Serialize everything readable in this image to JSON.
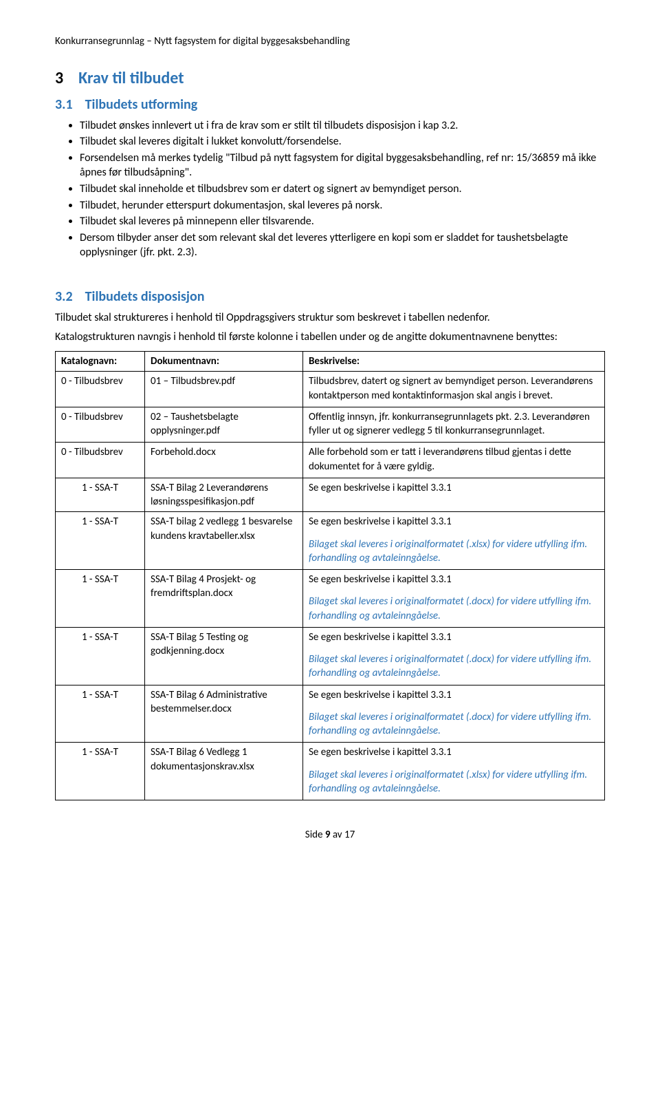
{
  "header": "Konkurransegrunnlag – Nytt fagsystem for digital byggesaksbehandling",
  "section": {
    "num": "3",
    "title": "Krav til tilbudet"
  },
  "sub31": {
    "num": "3.1",
    "title": "Tilbudets utforming",
    "bullets": [
      "Tilbudet ønskes innlevert ut i fra de krav som er stilt til tilbudets disposisjon i kap 3.2.",
      "Tilbudet skal leveres digitalt i lukket konvolutt/forsendelse.",
      "Forsendelsen må merkes tydelig \"Tilbud på nytt fagsystem for digital byggesaksbehandling, ref nr: 15/36859 må ikke åpnes før tilbudsåpning\".",
      "Tilbudet skal inneholde et tilbudsbrev som er datert og signert av bemyndiget person.",
      "Tilbudet, herunder etterspurt dokumentasjon, skal leveres på norsk.",
      "Tilbudet skal leveres på minnepenn eller tilsvarende.",
      "Dersom tilbyder anser det som relevant skal det leveres ytterligere en kopi som er sladdet for taushetsbelagte opplysninger (jfr. pkt. 2.3)."
    ]
  },
  "sub32": {
    "num": "3.2",
    "title": "Tilbudets disposisjon",
    "p1": "Tilbudet skal struktureres i henhold til Oppdragsgivers struktur som beskrevet i tabellen nedenfor.",
    "p2": "Katalogstrukturen navngis i henhold til første kolonne i tabellen under og de angitte dokumentnavnene benyttes:"
  },
  "table": {
    "headers": [
      "Katalognavn:",
      "Dokumentnavn:",
      "Beskrivelse:"
    ],
    "rows": [
      {
        "c1": "0 - Tilbudsbrev",
        "c1_align": "left",
        "c2": "01 – Tilbudsbrev.pdf",
        "c3": [
          {
            "t": "Tilbudsbrev, datert og signert av bemyndiget person. Leverandørens kontaktperson med kontaktinformasjon skal angis i brevet.",
            "italic": false
          }
        ]
      },
      {
        "c1": "0 - Tilbudsbrev",
        "c1_align": "left",
        "c2": "02 – Taushetsbelagte opplysninger.pdf",
        "c3": [
          {
            "t": "Offentlig innsyn, jfr. konkurransegrunnlagets pkt. 2.3. Leverandøren fyller ut og signerer vedlegg 5 til konkurransegrunnlaget.",
            "italic": false
          }
        ]
      },
      {
        "c1": "0 - Tilbudsbrev",
        "c1_align": "left",
        "c2": "Forbehold.docx",
        "c3": [
          {
            "t": "Alle forbehold som er tatt i leverandørens tilbud gjentas i dette dokumentet for å være gyldig.",
            "italic": false
          }
        ]
      },
      {
        "c1": "1 - SSA-T",
        "c1_align": "center",
        "c2": "SSA-T Bilag 2 Leverandørens løsningsspesifikasjon.pdf",
        "c3": [
          {
            "t": "Se egen beskrivelse i kapittel 3.3.1",
            "italic": false
          }
        ]
      },
      {
        "c1": "1 - SSA-T",
        "c1_align": "center",
        "c2": "SSA-T bilag 2 vedlegg 1 besvarelse kundens kravtabeller.xlsx",
        "c3": [
          {
            "t": "Se egen beskrivelse i kapittel 3.3.1",
            "italic": false
          },
          {
            "t": "Bilaget skal leveres i originalformatet (.xlsx) for videre utfylling ifm. forhandling og avtaleinngåelse.",
            "italic": true
          }
        ]
      },
      {
        "c1": "1 - SSA-T",
        "c1_align": "center",
        "c2": "SSA-T Bilag 4 Prosjekt- og fremdriftsplan.docx",
        "c3": [
          {
            "t": "Se egen beskrivelse i kapittel 3.3.1",
            "italic": false
          },
          {
            "t": "Bilaget skal leveres i originalformatet (.docx) for videre utfylling ifm. forhandling og avtaleinngåelse.",
            "italic": true
          }
        ]
      },
      {
        "c1": "1 - SSA-T",
        "c1_align": "center",
        "c2": "SSA-T Bilag 5 Testing og godkjenning.docx",
        "c3": [
          {
            "t": "Se egen beskrivelse i kapittel 3.3.1",
            "italic": false
          },
          {
            "t": "Bilaget skal leveres i originalformatet (.docx) for videre utfylling ifm. forhandling og avtaleinngåelse.",
            "italic": true
          }
        ]
      },
      {
        "c1": "1 - SSA-T",
        "c1_align": "center",
        "c2": "SSA-T Bilag 6 Administrative bestemmelser.docx",
        "c3": [
          {
            "t": "Se egen beskrivelse i kapittel 3.3.1",
            "italic": false
          },
          {
            "t": "Bilaget skal leveres i originalformatet (.docx) for videre utfylling ifm. forhandling og avtaleinngåelse.",
            "italic": true
          }
        ]
      },
      {
        "c1": "1 - SSA-T",
        "c1_align": "center",
        "c2": "SSA-T Bilag 6 Vedlegg 1 dokumentasjonskrav.xlsx",
        "c3": [
          {
            "t": "Se egen beskrivelse i kapittel 3.3.1",
            "italic": false
          },
          {
            "t": "Bilaget skal leveres i originalformatet (.xlsx) for videre utfylling ifm. forhandling og avtaleinngåelse.",
            "italic": true
          }
        ]
      }
    ]
  },
  "footer": {
    "pre": "Side ",
    "page": "9",
    "post": " av 17"
  },
  "colors": {
    "heading_accent": "#2e74b5",
    "text": "#000000",
    "bg": "#ffffff",
    "border": "#000000"
  }
}
